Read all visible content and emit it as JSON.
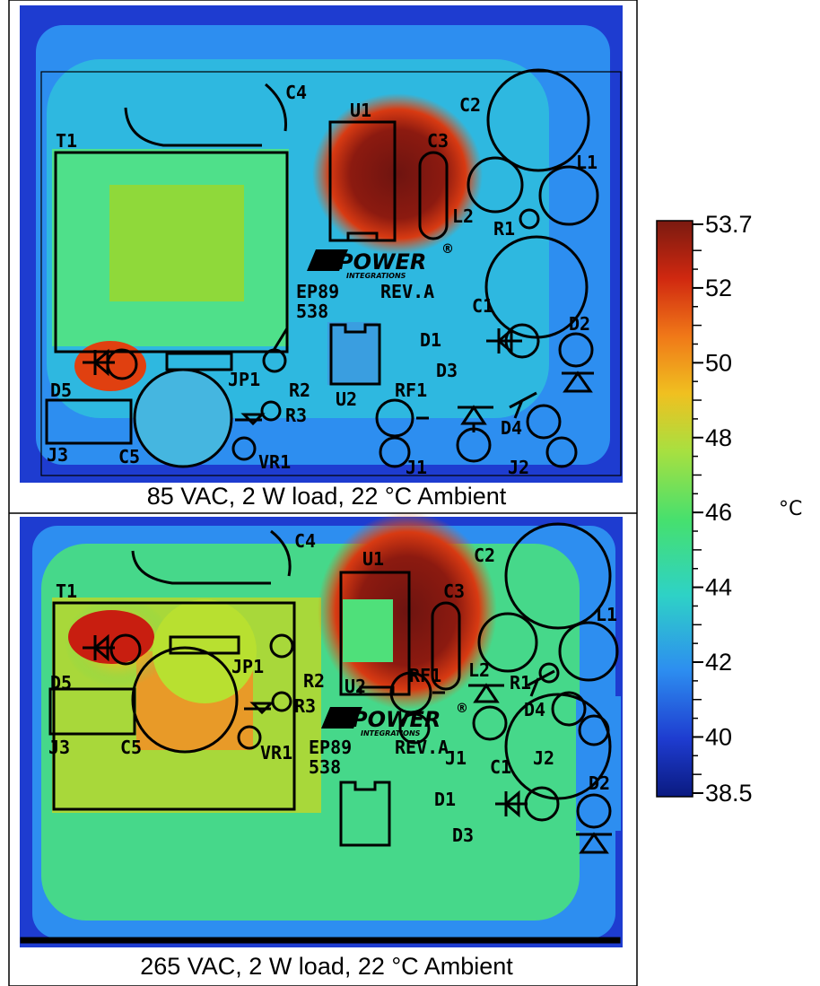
{
  "panels": [
    {
      "caption": "85 VAC, 2 W load, 22 °C Ambient",
      "t1_core": "#8fd93a",
      "t1_outer": "#4fe08a",
      "c5_fill": "#45b6e0",
      "d5_fill": "#e04010",
      "u2_fill": "#3a9ee0"
    },
    {
      "caption": "265 VAC, 2 W load, 22 °C Ambient",
      "t1_core": "#e89a28",
      "t1_outer": "#a8d83a",
      "c5_fill": "#b8e030",
      "d5_fill": "#c81e10",
      "u2_fill": "#4fe07a"
    }
  ],
  "labels": {
    "C4": "C4",
    "U1": "U1",
    "C2": "C2",
    "C3": "C3",
    "T1": "T1",
    "L1": "L1",
    "L2": "L2",
    "R1": "R1",
    "C1": "C1",
    "D2": "D2",
    "D1": "D1",
    "D3": "D3",
    "D5": "D5",
    "JP1": "JP1",
    "R2": "R2",
    "R3": "R3",
    "U2": "U2",
    "RF1": "RF1",
    "D4": "D4",
    "J3": "J3",
    "C5": "C5",
    "VR1": "VR1",
    "J1": "J1",
    "J2": "J2",
    "ep": "EP89",
    "rev": "REV.A",
    "n538": "538",
    "logo_main": "POWER",
    "logo_sub": "INTEGRATIONS",
    "reg": "®"
  },
  "colorbar": {
    "unit": "°C",
    "min": 38.5,
    "max": 53.7,
    "tick_labels": [
      "53.7",
      "52",
      "50",
      "48",
      "46",
      "44",
      "42",
      "40",
      "38.5"
    ],
    "tick_values": [
      53.7,
      52,
      50,
      48,
      46,
      44,
      42,
      40,
      38.5
    ],
    "colors": [
      "#0a1a80",
      "#1e3cd0",
      "#2d8ef0",
      "#2ed2c6",
      "#46e06e",
      "#a8e040",
      "#f0c020",
      "#f07818",
      "#d02810",
      "#7a1a10"
    ]
  }
}
